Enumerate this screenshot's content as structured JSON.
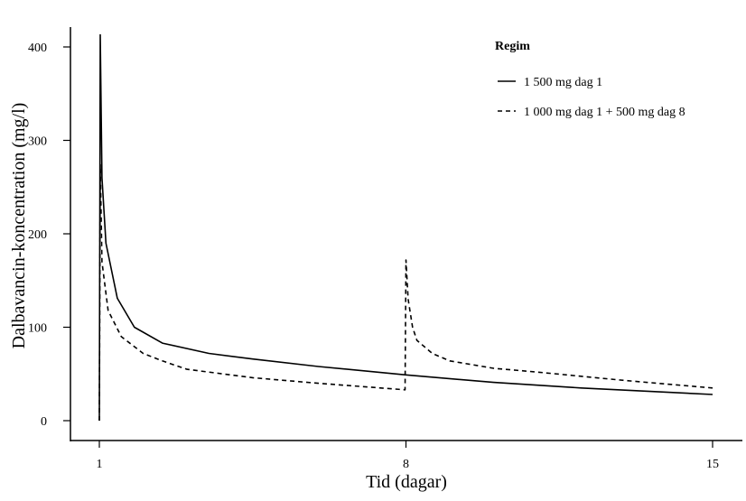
{
  "chart_data": {
    "type": "line",
    "title": "",
    "xlabel": "Tid (dagar)",
    "ylabel": "Dalbavancin-koncentration (mg/l)",
    "xlim": [
      1,
      15
    ],
    "ylim": [
      0,
      400
    ],
    "xticks": [
      1,
      8,
      15
    ],
    "yticks": [
      0,
      100,
      200,
      300,
      400
    ],
    "grid": false,
    "legend": {
      "title": "Regim",
      "placement": "top-right"
    },
    "series": [
      {
        "name": "1 500 mg dag 1",
        "style": "solid",
        "color": "#000000",
        "points": [
          [
            1,
            0
          ],
          [
            1.02,
            413
          ],
          [
            1.06,
            260
          ],
          [
            1.15,
            190
          ],
          [
            1.41,
            131
          ],
          [
            1.8,
            100
          ],
          [
            2.44,
            83
          ],
          [
            3.5,
            72
          ],
          [
            4.5,
            66
          ],
          [
            6,
            58
          ],
          [
            8,
            49
          ],
          [
            10,
            41
          ],
          [
            12,
            35
          ],
          [
            15,
            28
          ]
        ]
      },
      {
        "name": "1 000 mg dag 1 + 500 mg dag 8",
        "style": "dashed",
        "color": "#000000",
        "points": [
          [
            1,
            0
          ],
          [
            1.02,
            274
          ],
          [
            1.06,
            170
          ],
          [
            1.2,
            118
          ],
          [
            1.5,
            90
          ],
          [
            2,
            72
          ],
          [
            2.44,
            64
          ],
          [
            3,
            55
          ],
          [
            4.5,
            46
          ],
          [
            6,
            40
          ],
          [
            7.98,
            33
          ],
          [
            8,
            172
          ],
          [
            8.05,
            130
          ],
          [
            8.15,
            100
          ],
          [
            8.25,
            86
          ],
          [
            8.6,
            72
          ],
          [
            9,
            64
          ],
          [
            10,
            56
          ],
          [
            11,
            52
          ],
          [
            13,
            43
          ],
          [
            15,
            35
          ]
        ]
      }
    ]
  }
}
